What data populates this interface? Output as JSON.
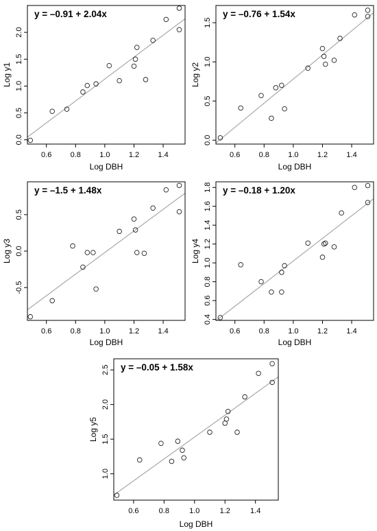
{
  "chart_data": [
    {
      "type": "scatter",
      "equation": "y = –0.91 + 2.04x",
      "xlabel": "Log DBH",
      "ylabel": "Log y1",
      "xlim": [
        0.47,
        1.55
      ],
      "ylim": [
        -0.08,
        2.5
      ],
      "xticks": [
        0.6,
        0.8,
        1.0,
        1.2,
        1.4
      ],
      "xtick_labels": [
        "0.6",
        "0.8",
        "1.0",
        "1.2",
        "1.4"
      ],
      "yticks": [
        0.0,
        0.5,
        1.0,
        1.5,
        2.0
      ],
      "ytick_labels": [
        "0.0",
        "0.5",
        "1.0",
        "1.5",
        "2.0"
      ],
      "fit": {
        "intercept": -0.91,
        "slope": 2.04
      },
      "points": [
        {
          "x": 0.49,
          "y": -0.01
        },
        {
          "x": 0.64,
          "y": 0.53
        },
        {
          "x": 0.74,
          "y": 0.57
        },
        {
          "x": 0.85,
          "y": 0.89
        },
        {
          "x": 0.88,
          "y": 1.01
        },
        {
          "x": 0.94,
          "y": 1.04
        },
        {
          "x": 1.03,
          "y": 1.38
        },
        {
          "x": 1.1,
          "y": 1.1
        },
        {
          "x": 1.2,
          "y": 1.37
        },
        {
          "x": 1.21,
          "y": 1.5
        },
        {
          "x": 1.22,
          "y": 1.72
        },
        {
          "x": 1.28,
          "y": 1.12
        },
        {
          "x": 1.33,
          "y": 1.85
        },
        {
          "x": 1.42,
          "y": 2.24
        },
        {
          "x": 1.51,
          "y": 2.45
        },
        {
          "x": 1.51,
          "y": 2.05
        }
      ],
      "grid": false
    },
    {
      "type": "scatter",
      "equation": "y = –0.76 + 1.54x",
      "xlabel": "Log DBH",
      "ylabel": "Log y2",
      "xlim": [
        0.47,
        1.55
      ],
      "ylim": [
        -0.05,
        1.72
      ],
      "xticks": [
        0.6,
        0.8,
        1.0,
        1.2,
        1.4
      ],
      "xtick_labels": [
        "0.6",
        "0.8",
        "1.0",
        "1.2",
        "1.4"
      ],
      "yticks": [
        0.0,
        0.5,
        1.0,
        1.5
      ],
      "ytick_labels": [
        "0.0",
        "0.5",
        "1.0",
        "1.5"
      ],
      "fit": {
        "intercept": -0.76,
        "slope": 1.54
      },
      "points": [
        {
          "x": 0.5,
          "y": 0.03
        },
        {
          "x": 0.64,
          "y": 0.41
        },
        {
          "x": 0.78,
          "y": 0.57
        },
        {
          "x": 0.85,
          "y": 0.28
        },
        {
          "x": 0.88,
          "y": 0.67
        },
        {
          "x": 0.92,
          "y": 0.7
        },
        {
          "x": 0.94,
          "y": 0.4
        },
        {
          "x": 1.1,
          "y": 0.92
        },
        {
          "x": 1.2,
          "y": 1.17
        },
        {
          "x": 1.21,
          "y": 1.07
        },
        {
          "x": 1.22,
          "y": 0.97
        },
        {
          "x": 1.28,
          "y": 1.02
        },
        {
          "x": 1.32,
          "y": 1.3
        },
        {
          "x": 1.42,
          "y": 1.6
        },
        {
          "x": 1.51,
          "y": 1.66
        },
        {
          "x": 1.51,
          "y": 1.58
        }
      ],
      "grid": false
    },
    {
      "type": "scatter",
      "equation": "y = –1.5 + 1.48x",
      "xlabel": "Log DBH",
      "ylabel": "Log y3",
      "xlim": [
        0.47,
        1.55
      ],
      "ylim": [
        -0.95,
        0.95
      ],
      "xticks": [
        0.6,
        0.8,
        1.0,
        1.2,
        1.4
      ],
      "xtick_labels": [
        "0.6",
        "0.8",
        "1.0",
        "1.2",
        "1.4"
      ],
      "yticks": [
        -0.5,
        0.0,
        0.5
      ],
      "ytick_labels": [
        "-0.5",
        "0.0",
        "0.5"
      ],
      "fit": {
        "intercept": -1.5,
        "slope": 1.48
      },
      "points": [
        {
          "x": 0.49,
          "y": -0.9
        },
        {
          "x": 0.64,
          "y": -0.68
        },
        {
          "x": 0.78,
          "y": 0.07
        },
        {
          "x": 0.85,
          "y": -0.22
        },
        {
          "x": 0.88,
          "y": -0.02
        },
        {
          "x": 0.92,
          "y": -0.02
        },
        {
          "x": 0.94,
          "y": -0.52
        },
        {
          "x": 1.1,
          "y": 0.27
        },
        {
          "x": 1.2,
          "y": 0.44
        },
        {
          "x": 1.21,
          "y": 0.29
        },
        {
          "x": 1.22,
          "y": -0.02
        },
        {
          "x": 1.27,
          "y": -0.03
        },
        {
          "x": 1.33,
          "y": 0.59
        },
        {
          "x": 1.42,
          "y": 0.84
        },
        {
          "x": 1.51,
          "y": 0.9
        },
        {
          "x": 1.51,
          "y": 0.54
        }
      ],
      "grid": false
    },
    {
      "type": "scatter",
      "equation": "y = –0.18 + 1.20x",
      "xlabel": "Log DBH",
      "ylabel": "Log y4",
      "xlim": [
        0.47,
        1.55
      ],
      "ylim": [
        0.39,
        1.86
      ],
      "xticks": [
        0.6,
        0.8,
        1.0,
        1.2,
        1.4
      ],
      "xtick_labels": [
        "0.6",
        "0.8",
        "1.0",
        "1.2",
        "1.4"
      ],
      "yticks": [
        0.4,
        0.6,
        0.8,
        1.0,
        1.2,
        1.4,
        1.6,
        1.8
      ],
      "ytick_labels": [
        "0.4",
        "0.6",
        "0.8",
        "1.0",
        "1.2",
        "1.4",
        "1.6",
        "1.8"
      ],
      "fit": {
        "intercept": -0.18,
        "slope": 1.2
      },
      "points": [
        {
          "x": 0.5,
          "y": 0.42
        },
        {
          "x": 0.64,
          "y": 0.98
        },
        {
          "x": 0.78,
          "y": 0.8
        },
        {
          "x": 0.85,
          "y": 0.69
        },
        {
          "x": 0.92,
          "y": 0.69
        },
        {
          "x": 0.92,
          "y": 0.9
        },
        {
          "x": 0.94,
          "y": 0.97
        },
        {
          "x": 1.1,
          "y": 1.21
        },
        {
          "x": 1.2,
          "y": 1.06
        },
        {
          "x": 1.21,
          "y": 1.2
        },
        {
          "x": 1.22,
          "y": 1.21
        },
        {
          "x": 1.28,
          "y": 1.17
        },
        {
          "x": 1.33,
          "y": 1.53
        },
        {
          "x": 1.42,
          "y": 1.8
        },
        {
          "x": 1.51,
          "y": 1.82
        },
        {
          "x": 1.51,
          "y": 1.64
        }
      ],
      "grid": false
    },
    {
      "type": "scatter",
      "equation": "y = –0.05 + 1.58x",
      "xlabel": "Log DBH",
      "ylabel": "Log y5",
      "xlim": [
        0.47,
        1.55
      ],
      "ylim": [
        0.62,
        2.66
      ],
      "xticks": [
        0.6,
        0.8,
        1.0,
        1.2,
        1.4
      ],
      "xtick_labels": [
        "0.6",
        "0.8",
        "1.0",
        "1.2",
        "1.4"
      ],
      "yticks": [
        1.0,
        1.5,
        2.0,
        2.5
      ],
      "ytick_labels": [
        "1.0",
        "1.5",
        "2.0",
        "2.5"
      ],
      "fit": {
        "intercept": -0.05,
        "slope": 1.58
      },
      "points": [
        {
          "x": 0.49,
          "y": 0.69
        },
        {
          "x": 0.64,
          "y": 1.2
        },
        {
          "x": 0.78,
          "y": 1.44
        },
        {
          "x": 0.85,
          "y": 1.18
        },
        {
          "x": 0.89,
          "y": 1.47
        },
        {
          "x": 0.92,
          "y": 1.34
        },
        {
          "x": 0.93,
          "y": 1.23
        },
        {
          "x": 1.1,
          "y": 1.6
        },
        {
          "x": 1.2,
          "y": 1.73
        },
        {
          "x": 1.21,
          "y": 1.79
        },
        {
          "x": 1.22,
          "y": 1.9
        },
        {
          "x": 1.28,
          "y": 1.6
        },
        {
          "x": 1.33,
          "y": 2.11
        },
        {
          "x": 1.42,
          "y": 2.45
        },
        {
          "x": 1.51,
          "y": 2.59
        },
        {
          "x": 1.51,
          "y": 2.32
        }
      ],
      "grid": false
    }
  ]
}
